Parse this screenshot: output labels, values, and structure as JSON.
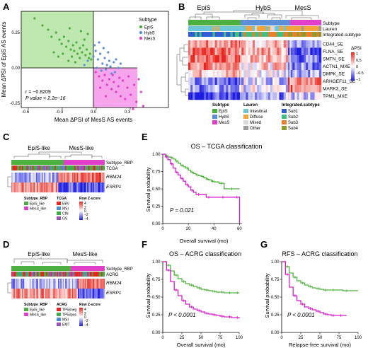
{
  "panel_labels": [
    "A",
    "B",
    "C",
    "D",
    "E",
    "F",
    "G"
  ],
  "colors": {
    "epis": "#4caf3f",
    "hybs": "#5b8fd8",
    "mess": "#e040c8",
    "epis_region": "#bfe8b0",
    "mess_region": "#f6a5ec",
    "km_epi": "#4cb43a",
    "km_mes": "#d91ad2"
  },
  "panelA": {
    "xlabel": "Mean ΔPSI of MesS AS events",
    "ylabel": "Mean ΔPSI of EpiS AS events",
    "xticks": [
      "-0.6",
      "-0.3",
      "0.0",
      "0.3"
    ],
    "yticks": [
      "-0.25",
      "0.00",
      "0.25"
    ],
    "stat_r": "r = −0.8209",
    "stat_p": "P value < 2.2e−16",
    "legend_title": "Subtype",
    "legend": [
      "EpiS",
      "HybS",
      "MesS"
    ]
  },
  "panelB": {
    "groups": [
      "EpiS",
      "HybS",
      "MesS"
    ],
    "track_labels": [
      "Subtype",
      "Lauren",
      "Integrated.subtype"
    ],
    "rows": [
      "CD44_SE",
      "FLNA_SE",
      "SMTN_SE",
      "ACTN1_MXE",
      "DMPK_SE",
      "ARHGEF11_SE",
      "MARK3_SE",
      "TPM1_MXE"
    ],
    "scale_title": "ΔPSI",
    "scale_ticks": [
      "1",
      "0.5",
      "0",
      "−0.5",
      "−1"
    ],
    "legend_subtype_title": "Subtype",
    "legend_subtype": [
      "EpiS",
      "HybS",
      "MesS"
    ],
    "legend_lauren_title": "Lauren",
    "legend_lauren": [
      "Intestinal",
      "Diffuse",
      "Mixed",
      "Other"
    ],
    "legend_int_title": "Integrated.subtype",
    "legend_int": [
      "Sub1",
      "Sub2",
      "Sub3",
      "Sub4"
    ]
  },
  "panelC": {
    "group_left": "EpiS-like",
    "group_right": "MesS-like",
    "track1": "Subtype_RBP",
    "track2": "TCGA",
    "genes": [
      "RBM24",
      "ESRP1"
    ],
    "leg_rbp_title": "Subtype_RBP",
    "leg_rbp": [
      "EpiS_like",
      "MesS_like"
    ],
    "leg_tcga_title": "TCGA",
    "leg_tcga": [
      "EBV",
      "MSI",
      "CIN",
      "GS"
    ],
    "leg_z_title": "Row Z-score",
    "leg_z": [
      "4",
      "2",
      "0",
      "−2",
      "−4"
    ]
  },
  "panelD": {
    "group_left": "EpiS-like",
    "group_right": "MesS-like",
    "track1": "Subtype_RBP",
    "track2": "ACRG",
    "genes": [
      "RBM24",
      "ESRP1"
    ],
    "leg_rbp_title": "Subtype_RBP",
    "leg_rbp": [
      "EpiS_like",
      "MesS_like"
    ],
    "leg_acrg_title": "ACRG",
    "leg_acrg": [
      "TP53neg",
      "TP53pos",
      "MSI",
      "EMT"
    ],
    "leg_z_title": "Row Z-score",
    "leg_z": [
      "4",
      "2",
      "0",
      "−2",
      "−4"
    ]
  },
  "panelE": {
    "title": "OS – TCGA classification",
    "ylabel": "Survival probability",
    "xlabel": "Overall survival (mo)",
    "yticks": [
      "0.00",
      "0.25",
      "0.50",
      "0.75",
      "1.00"
    ],
    "xticks": [
      "0",
      "20",
      "40",
      "60"
    ],
    "pvalue": "P = 0.021"
  },
  "panelF": {
    "title": "OS – ACRG classification",
    "ylabel": "Survival probability",
    "xlabel": "Overall survival (mo)",
    "yticks": [
      "0.00",
      "0.25",
      "0.50",
      "0.75",
      "1.00"
    ],
    "xticks": [
      "0",
      "25",
      "50",
      "75",
      "100"
    ],
    "pvalue": "P < 0.0001"
  },
  "panelG": {
    "title": "RFS – ACRG classification",
    "ylabel": "Survival probability",
    "xlabel": "Relapse-free survival (mo)",
    "yticks": [
      "0.00",
      "0.25",
      "0.50",
      "0.75",
      "1.00"
    ],
    "xticks": [
      "0",
      "25",
      "50",
      "75",
      "100"
    ],
    "pvalue": "P < 0.0001"
  },
  "chart_data": [
    {
      "type": "scatter",
      "panel": "A",
      "xlim": [
        -0.6,
        0.5
      ],
      "ylim": [
        -0.3,
        0.38
      ],
      "series": [
        {
          "name": "EpiS",
          "points": [
            [
              -0.52,
              0.35
            ],
            [
              -0.45,
              0.3
            ],
            [
              -0.4,
              0.27
            ],
            [
              -0.37,
              0.22
            ],
            [
              -0.33,
              0.25
            ],
            [
              -0.3,
              0.2
            ],
            [
              -0.28,
              0.17
            ],
            [
              -0.26,
              0.22
            ],
            [
              -0.24,
              0.15
            ],
            [
              -0.22,
              0.19
            ],
            [
              -0.2,
              0.13
            ],
            [
              -0.18,
              0.16
            ],
            [
              -0.17,
              0.12
            ],
            [
              -0.15,
              0.18
            ],
            [
              -0.14,
              0.1
            ],
            [
              -0.12,
              0.14
            ],
            [
              -0.1,
              0.11
            ],
            [
              -0.09,
              0.16
            ],
            [
              -0.07,
              0.09
            ],
            [
              -0.06,
              0.13
            ],
            [
              -0.04,
              0.07
            ],
            [
              -0.03,
              0.1
            ],
            [
              -0.02,
              0.06
            ],
            [
              -0.35,
              0.11
            ],
            [
              -0.31,
              0.08
            ],
            [
              -0.27,
              0.1
            ],
            [
              -0.22,
              0.05
            ],
            [
              -0.19,
              0.08
            ],
            [
              -0.16,
              0.04
            ],
            [
              -0.12,
              0.07
            ],
            [
              -0.08,
              0.2
            ],
            [
              -0.05,
              0.24
            ],
            [
              -0.21,
              0.28
            ],
            [
              -0.11,
              0.26
            ]
          ]
        },
        {
          "name": "HybS",
          "points": [
            [
              -0.05,
              0.05
            ],
            [
              0.0,
              0.08
            ],
            [
              0.02,
              0.12
            ],
            [
              0.04,
              0.06
            ],
            [
              0.06,
              0.1
            ],
            [
              0.08,
              0.03
            ],
            [
              0.1,
              0.07
            ],
            [
              0.12,
              0.02
            ],
            [
              0.14,
              0.05
            ],
            [
              0.03,
              0.0
            ],
            [
              0.07,
              -0.02
            ],
            [
              0.11,
              -0.01
            ],
            [
              0.15,
              0.01
            ],
            [
              0.18,
              0.04
            ],
            [
              0.2,
              0.06
            ],
            [
              0.22,
              0.0
            ],
            [
              0.01,
              0.16
            ],
            [
              0.05,
              0.18
            ],
            [
              0.09,
              0.14
            ],
            [
              0.13,
              0.11
            ],
            [
              -0.08,
              0.02
            ],
            [
              0.16,
              -0.04
            ],
            [
              0.19,
              -0.03
            ],
            [
              0.24,
              0.03
            ]
          ]
        },
        {
          "name": "MesS",
          "points": [
            [
              0.02,
              -0.03
            ],
            [
              0.05,
              -0.06
            ],
            [
              0.08,
              -0.09
            ],
            [
              0.1,
              -0.05
            ],
            [
              0.12,
              -0.12
            ],
            [
              0.14,
              -0.08
            ],
            [
              0.16,
              -0.15
            ],
            [
              0.18,
              -0.1
            ],
            [
              0.2,
              -0.17
            ],
            [
              0.22,
              -0.13
            ],
            [
              0.24,
              -0.2
            ],
            [
              0.26,
              -0.09
            ],
            [
              0.28,
              -0.22
            ],
            [
              0.3,
              -0.14
            ],
            [
              0.33,
              -0.19
            ],
            [
              0.36,
              -0.12
            ],
            [
              0.38,
              -0.24
            ],
            [
              0.42,
              -0.17
            ],
            [
              0.44,
              -0.27
            ],
            [
              0.06,
              -0.14
            ],
            [
              0.11,
              -0.2
            ],
            [
              0.17,
              -0.05
            ],
            [
              0.23,
              -0.07
            ],
            [
              0.31,
              -0.06
            ],
            [
              0.35,
              -0.29
            ],
            [
              0.4,
              -0.08
            ]
          ]
        }
      ]
    },
    {
      "type": "line",
      "panel": "E",
      "xlim": [
        0,
        62
      ],
      "ylim": [
        0,
        1
      ],
      "series": [
        {
          "name": "EpiS",
          "x": [
            0,
            2,
            4,
            6,
            8,
            10,
            12,
            14,
            16,
            18,
            20,
            22,
            24,
            26,
            28,
            30,
            32,
            34,
            36,
            38,
            40,
            44,
            48,
            52,
            56,
            60
          ],
          "y": [
            1.0,
            0.98,
            0.96,
            0.95,
            0.93,
            0.9,
            0.87,
            0.84,
            0.82,
            0.8,
            0.77,
            0.74,
            0.72,
            0.7,
            0.69,
            0.68,
            0.66,
            0.64,
            0.63,
            0.61,
            0.6,
            0.58,
            0.5,
            0.5,
            0.5,
            0.5
          ]
        },
        {
          "name": "MesS",
          "x": [
            0,
            2,
            4,
            6,
            8,
            10,
            12,
            14,
            16,
            18,
            20,
            22,
            24,
            26,
            30,
            34,
            38,
            44,
            50,
            56,
            60
          ],
          "y": [
            1.0,
            0.96,
            0.92,
            0.86,
            0.8,
            0.74,
            0.7,
            0.65,
            0.61,
            0.56,
            0.53,
            0.48,
            0.45,
            0.42,
            0.42,
            0.38,
            0.38,
            0.38,
            0.38,
            0.38,
            0.0
          ]
        }
      ]
    },
    {
      "type": "line",
      "panel": "F",
      "xlim": [
        0,
        100
      ],
      "ylim": [
        0,
        1
      ],
      "series": [
        {
          "name": "EpiS",
          "x": [
            0,
            5,
            10,
            15,
            20,
            25,
            30,
            35,
            40,
            45,
            50,
            55,
            60,
            65,
            70,
            75,
            80,
            85,
            90,
            95,
            100
          ],
          "y": [
            1.0,
            0.95,
            0.87,
            0.81,
            0.76,
            0.72,
            0.69,
            0.67,
            0.65,
            0.63,
            0.61,
            0.6,
            0.59,
            0.58,
            0.57,
            0.57,
            0.56,
            0.56,
            0.56,
            0.56,
            0.56
          ]
        },
        {
          "name": "MesS",
          "x": [
            0,
            5,
            10,
            15,
            20,
            25,
            30,
            35,
            40,
            45,
            50,
            55,
            60,
            65,
            70,
            75,
            80,
            85,
            90,
            95,
            100
          ],
          "y": [
            1.0,
            0.88,
            0.72,
            0.6,
            0.52,
            0.45,
            0.4,
            0.36,
            0.33,
            0.31,
            0.29,
            0.27,
            0.26,
            0.25,
            0.24,
            0.23,
            0.22,
            0.22,
            0.21,
            0.21,
            0.2
          ]
        }
      ]
    },
    {
      "type": "line",
      "panel": "G",
      "xlim": [
        0,
        100
      ],
      "ylim": [
        0,
        1
      ],
      "series": [
        {
          "name": "EpiS",
          "x": [
            0,
            5,
            10,
            15,
            20,
            25,
            30,
            35,
            40,
            45,
            50,
            55,
            60,
            65,
            70,
            80,
            90,
            100
          ],
          "y": [
            1.0,
            0.93,
            0.84,
            0.78,
            0.73,
            0.7,
            0.67,
            0.65,
            0.63,
            0.62,
            0.61,
            0.6,
            0.6,
            0.6,
            0.6,
            0.59,
            0.59,
            0.59
          ]
        },
        {
          "name": "MesS",
          "x": [
            0,
            5,
            10,
            15,
            20,
            25,
            30,
            35,
            40,
            45,
            50,
            55,
            60,
            65,
            70,
            75,
            80,
            85
          ],
          "y": [
            1.0,
            0.82,
            0.64,
            0.52,
            0.45,
            0.4,
            0.36,
            0.34,
            0.32,
            0.3,
            0.28,
            0.26,
            0.25,
            0.24,
            0.24,
            0.24,
            0.24,
            0.24
          ]
        }
      ]
    }
  ]
}
